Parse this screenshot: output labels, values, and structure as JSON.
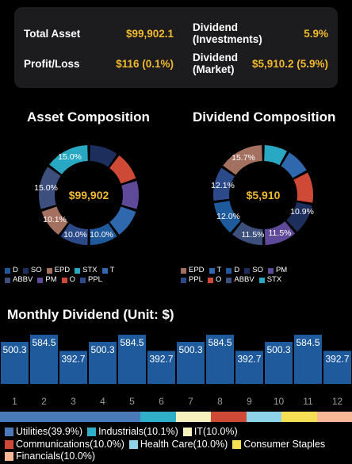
{
  "summary": {
    "total_asset_label": "Total Asset",
    "total_asset_value": "$99,902.1",
    "dividend_inv_label_1": "Dividend",
    "dividend_inv_label_2": "(Investments)",
    "dividend_inv_value": "5.9%",
    "profit_label": "Profit/Loss",
    "profit_value": "$116 (0.1%)",
    "dividend_mkt_label_1": "Dividend",
    "dividend_mkt_label_2": "(Market)",
    "dividend_mkt_value": "$5,910.2 (5.9%)"
  },
  "colors": {
    "accent": "#f0b92e",
    "card_bg": "#1c1c1e",
    "bar": "#1f5a9c",
    "D": "#1f5a9c",
    "SO": "#1e2e5c",
    "EPD": "#a4705f",
    "STX": "#29a8c4",
    "T": "#2f68ad",
    "ABBV": "#3d4f7d",
    "PM": "#5e4a98",
    "O": "#cf4a36",
    "PPL": "#2c4a8a"
  },
  "asset_composition": {
    "title": "Asset Composition",
    "center": "$99,902",
    "labels": [
      "15.0%",
      "15.0%",
      "10.1%",
      "10.0%",
      "10.0%"
    ],
    "legend": [
      [
        {
          "name": "D",
          "color": "#1f5a9c"
        },
        {
          "name": "SO",
          "color": "#1e2e5c"
        },
        {
          "name": "EPD",
          "color": "#a4705f"
        },
        {
          "name": "STX",
          "color": "#29a8c4"
        },
        {
          "name": "T",
          "color": "#2f68ad"
        }
      ],
      [
        {
          "name": "ABBV",
          "color": "#3d4f7d"
        },
        {
          "name": "PM",
          "color": "#5e4a98"
        },
        {
          "name": "O",
          "color": "#cf4a36"
        },
        {
          "name": "PPL",
          "color": "#2c4a8a"
        }
      ]
    ]
  },
  "dividend_composition": {
    "title": "Dividend Composition",
    "center": "$5,910",
    "labels": [
      "15.7%",
      "12.1%",
      "10.9%",
      "12.0%",
      "11.5%",
      "11.5%"
    ],
    "legend": [
      [
        {
          "name": "EPD",
          "color": "#a4705f"
        },
        {
          "name": "T",
          "color": "#2f68ad"
        },
        {
          "name": "D",
          "color": "#1f5a9c"
        },
        {
          "name": "SO",
          "color": "#1e2e5c"
        },
        {
          "name": "PM",
          "color": "#5e4a98"
        }
      ],
      [
        {
          "name": "PPL",
          "color": "#2c4a8a"
        },
        {
          "name": "O",
          "color": "#cf4a36"
        },
        {
          "name": "ABBV",
          "color": "#3d4f7d"
        },
        {
          "name": "STX",
          "color": "#29a8c4"
        }
      ]
    ]
  },
  "monthly_dividend": {
    "title": "Monthly Dividend (Unit: $)"
  },
  "chart_data": {
    "type": "bar",
    "title": "Monthly Dividend (Unit: $)",
    "categories": [
      "1",
      "2",
      "3",
      "4",
      "5",
      "6",
      "7",
      "8",
      "9",
      "10",
      "11",
      "12"
    ],
    "values": [
      500.3,
      584.5,
      392.7,
      500.3,
      584.5,
      392.7,
      500.3,
      584.5,
      392.7,
      500.3,
      584.5,
      392.7
    ],
    "value_labels": [
      "500.3",
      "584.5",
      "392.7",
      "500.3",
      "584.5",
      "392.7",
      "500.3",
      "584.5",
      "392.7",
      "500.3",
      "584.5",
      "392.7"
    ],
    "ylim": [
      0,
      584.5
    ]
  },
  "sectors": {
    "weights": [
      39.9,
      10.1,
      10.0,
      10.0,
      10.0,
      10.0,
      10.0
    ],
    "legend": [
      [
        {
          "label": "Utilities(39.9%)",
          "color": "#4a7ab8"
        },
        {
          "label": "Industrials(10.1%)",
          "color": "#2fb0c8"
        },
        {
          "label": "IT(10.0%)",
          "color": "#f7f1bd"
        }
      ],
      [
        {
          "label": "Communications(10.0%)",
          "color": "#cf4a36"
        },
        {
          "label": "Health Care(10.0%)",
          "color": "#8ed3ea"
        },
        {
          "label": "Consumer Staples",
          "color": "#f6de55"
        }
      ],
      [
        {
          "label": "Financials(10.0%)",
          "color": "#f6b896"
        }
      ]
    ]
  }
}
